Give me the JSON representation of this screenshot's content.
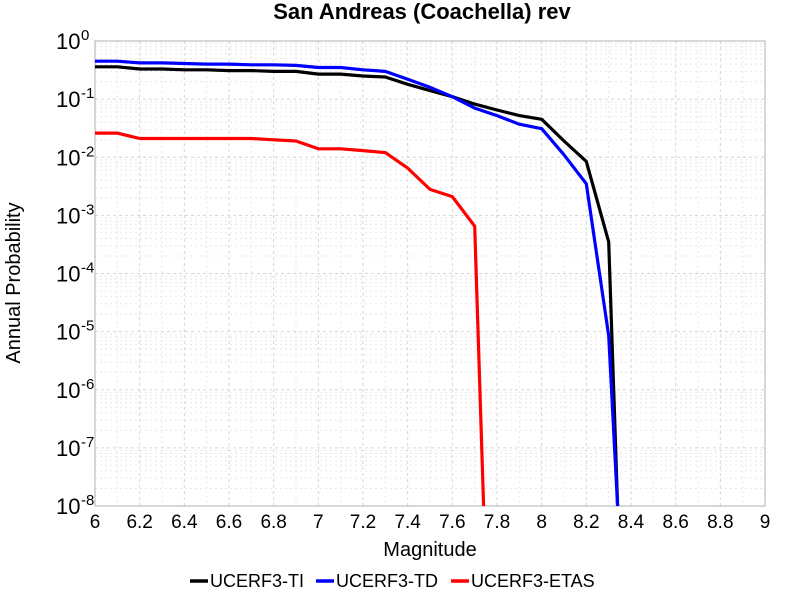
{
  "chart_data": {
    "type": "line",
    "title": "San Andreas (Coachella) rev",
    "xlabel": "Magnitude",
    "ylabel": "Annual Probability",
    "xlim": [
      6,
      9
    ],
    "ylim": [
      1e-08,
      1
    ],
    "yscale": "log",
    "grid": true,
    "legend_position": "bottom",
    "xticks": [
      "6",
      "6.2",
      "6.4",
      "6.6",
      "6.8",
      "7",
      "7.2",
      "7.4",
      "7.6",
      "7.8",
      "8",
      "8.2",
      "8.4",
      "8.6",
      "8.8",
      "9"
    ],
    "yticks": [
      {
        "base": "10",
        "exp": "0"
      },
      {
        "base": "10",
        "exp": "-1"
      },
      {
        "base": "10",
        "exp": "-2"
      },
      {
        "base": "10",
        "exp": "-3"
      },
      {
        "base": "10",
        "exp": "-4"
      },
      {
        "base": "10",
        "exp": "-5"
      },
      {
        "base": "10",
        "exp": "-6"
      },
      {
        "base": "10",
        "exp": "-7"
      },
      {
        "base": "10",
        "exp": "-8"
      }
    ],
    "series": [
      {
        "name": "UCERF3-TI",
        "color": "#000000",
        "x": [
          6.0,
          6.1,
          6.2,
          6.3,
          6.4,
          6.5,
          6.6,
          6.7,
          6.8,
          6.9,
          7.0,
          7.1,
          7.2,
          7.3,
          7.4,
          7.5,
          7.6,
          7.7,
          7.8,
          7.9,
          8.0,
          8.1,
          8.2,
          8.3,
          8.34
        ],
        "y": [
          0.36,
          0.36,
          0.33,
          0.33,
          0.32,
          0.32,
          0.31,
          0.31,
          0.3,
          0.3,
          0.27,
          0.27,
          0.25,
          0.24,
          0.18,
          0.14,
          0.11,
          0.082,
          0.065,
          0.052,
          0.045,
          0.019,
          0.0085,
          0.00035,
          1e-08
        ]
      },
      {
        "name": "UCERF3-TD",
        "color": "#0000ff",
        "x": [
          6.0,
          6.1,
          6.2,
          6.3,
          6.4,
          6.5,
          6.6,
          6.7,
          6.8,
          6.9,
          7.0,
          7.1,
          7.2,
          7.3,
          7.4,
          7.5,
          7.6,
          7.7,
          7.8,
          7.9,
          8.0,
          8.1,
          8.2,
          8.3,
          8.34
        ],
        "y": [
          0.45,
          0.45,
          0.42,
          0.42,
          0.41,
          0.4,
          0.4,
          0.39,
          0.39,
          0.38,
          0.35,
          0.35,
          0.32,
          0.3,
          0.22,
          0.16,
          0.11,
          0.07,
          0.052,
          0.037,
          0.031,
          0.011,
          0.0035,
          8.5e-06,
          1e-08
        ]
      },
      {
        "name": "UCERF3-ETAS",
        "color": "#ff0000",
        "x": [
          6.0,
          6.1,
          6.2,
          6.3,
          6.4,
          6.5,
          6.6,
          6.7,
          6.8,
          6.9,
          7.0,
          7.1,
          7.2,
          7.3,
          7.4,
          7.5,
          7.6,
          7.7,
          7.74
        ],
        "y": [
          0.026,
          0.026,
          0.021,
          0.021,
          0.021,
          0.021,
          0.021,
          0.021,
          0.02,
          0.019,
          0.014,
          0.014,
          0.013,
          0.012,
          0.0065,
          0.0028,
          0.0021,
          0.00065,
          1e-08
        ]
      }
    ]
  }
}
